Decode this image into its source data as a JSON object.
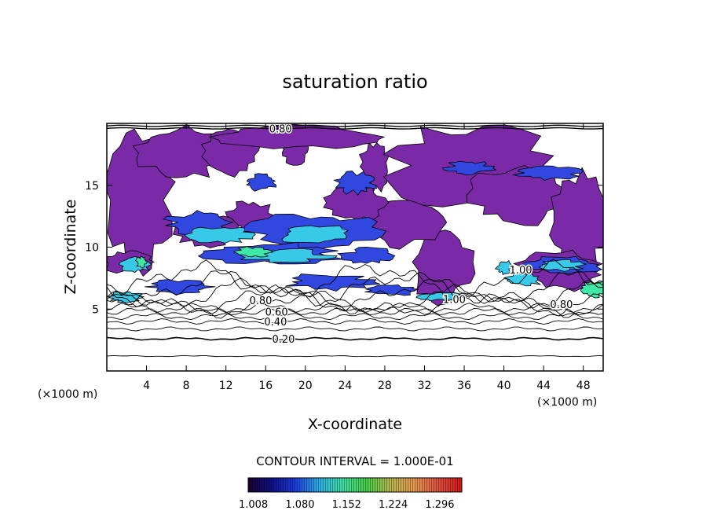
{
  "chart_data": {
    "type": "heatmap",
    "title": "saturation ratio",
    "xlabel": "X-coordinate",
    "ylabel": "Z-coordinate",
    "x_unit": "(×1000 m)",
    "xlim": [
      0,
      50
    ],
    "ylim": [
      0,
      20
    ],
    "x_ticks": [
      4,
      8,
      12,
      16,
      20,
      24,
      28,
      32,
      36,
      40,
      44,
      48
    ],
    "y_ticks": [
      5,
      10,
      15
    ],
    "contour_interval_text": "CONTOUR INTERVAL = 1.000E-01",
    "contour_interval": 0.1,
    "contour_labels": [
      {
        "text": "0.20",
        "x": 17.8,
        "z": 2.6
      },
      {
        "text": "0.40",
        "x": 17.0,
        "z": 4.0
      },
      {
        "text": "0.60",
        "x": 17.1,
        "z": 4.8
      },
      {
        "text": "0.80",
        "x": 15.5,
        "z": 5.7
      },
      {
        "text": "0.80",
        "x": 45.8,
        "z": 5.4
      },
      {
        "text": "1.00",
        "x": 35.0,
        "z": 5.8
      },
      {
        "text": "1.00",
        "x": 41.7,
        "z": 8.2
      },
      {
        "text": "0.80",
        "x": 17.5,
        "z": 19.6
      }
    ],
    "colorbar": {
      "min": 1.0,
      "max": 1.33,
      "tick_labels": [
        "1.008",
        "1.080",
        "1.152",
        "1.224",
        "1.296"
      ],
      "colors": [
        "#1a0030",
        "#10108a",
        "#1c3ee0",
        "#30b0e8",
        "#40e0a0",
        "#48d048",
        "#b8b850",
        "#e89a50",
        "#e05040",
        "#d81818"
      ]
    },
    "fill_colors": {
      "saturated_base": "#7a2aa6",
      "vapour_high": [
        "#3048e0",
        "#38c8e8",
        "#40e8a8"
      ]
    },
    "background": "#ffffff"
  }
}
